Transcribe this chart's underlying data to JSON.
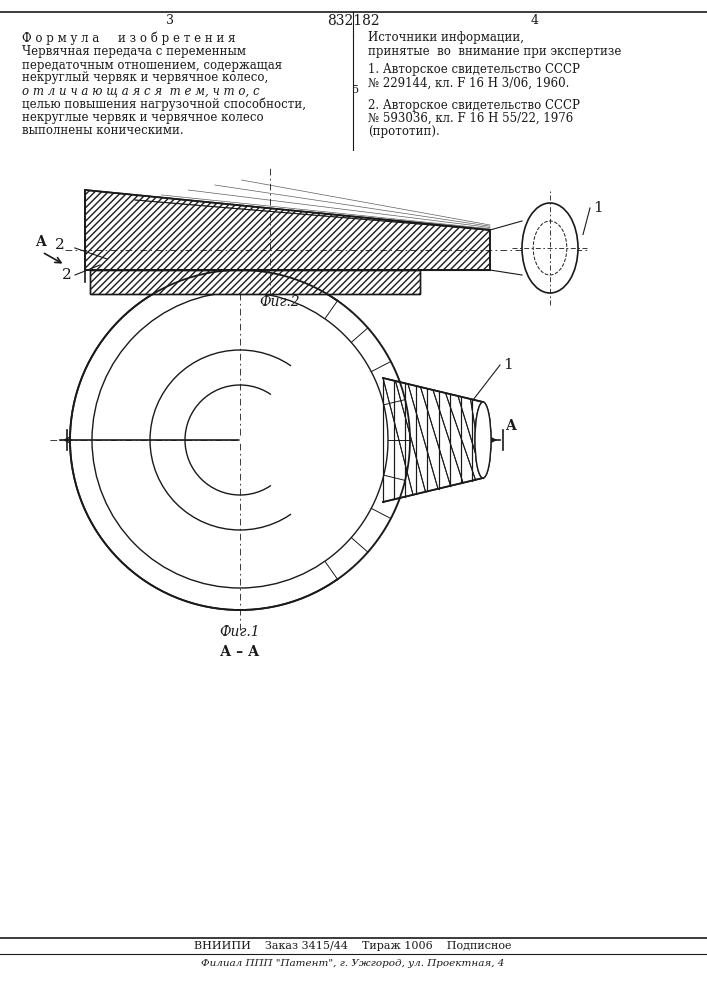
{
  "patent_number": "832182",
  "page_left": "3",
  "page_right": "4",
  "bg_color": "#ffffff",
  "line_color": "#1a1a1a",
  "title_top": "Ф о р м у л а     и з о б р е т е н и я",
  "right_header": "Источники информации,",
  "right_header2": "принятые  во  внимание при экспертизе",
  "formula_text": [
    "Червячная передача с переменным",
    "передаточным отношением, содержащая",
    "некруглый червяк и червячное колесо,",
    "о т л и ч а ю щ а я с я  т е м, ч т о, с",
    "целью повышения нагрузочной способности,",
    "некруглые червяк и червячное колесо",
    "выполнены коническими."
  ],
  "ref1": "1. Авторское свидетельство СССР",
  "ref1b": "№ 229144, кл. F 16 H 3/06, 1960.",
  "ref2": "2. Авторское свидетельство СССР",
  "ref2b": "№ 593036, кл. F 16 H 55/22, 1976",
  "ref2c": "(прототип).",
  "fig1_label": "Фиг.1",
  "fig2_label": "Фиг.2",
  "aa_label": "А – А",
  "bottom_bar": "ВНИИПИ    Заказ 3415/44    Тираж 1006    Подписное",
  "bottom_bar2": "Филиал ППП \"Патент\", г. Ужгород, ул. Проектная, 4"
}
